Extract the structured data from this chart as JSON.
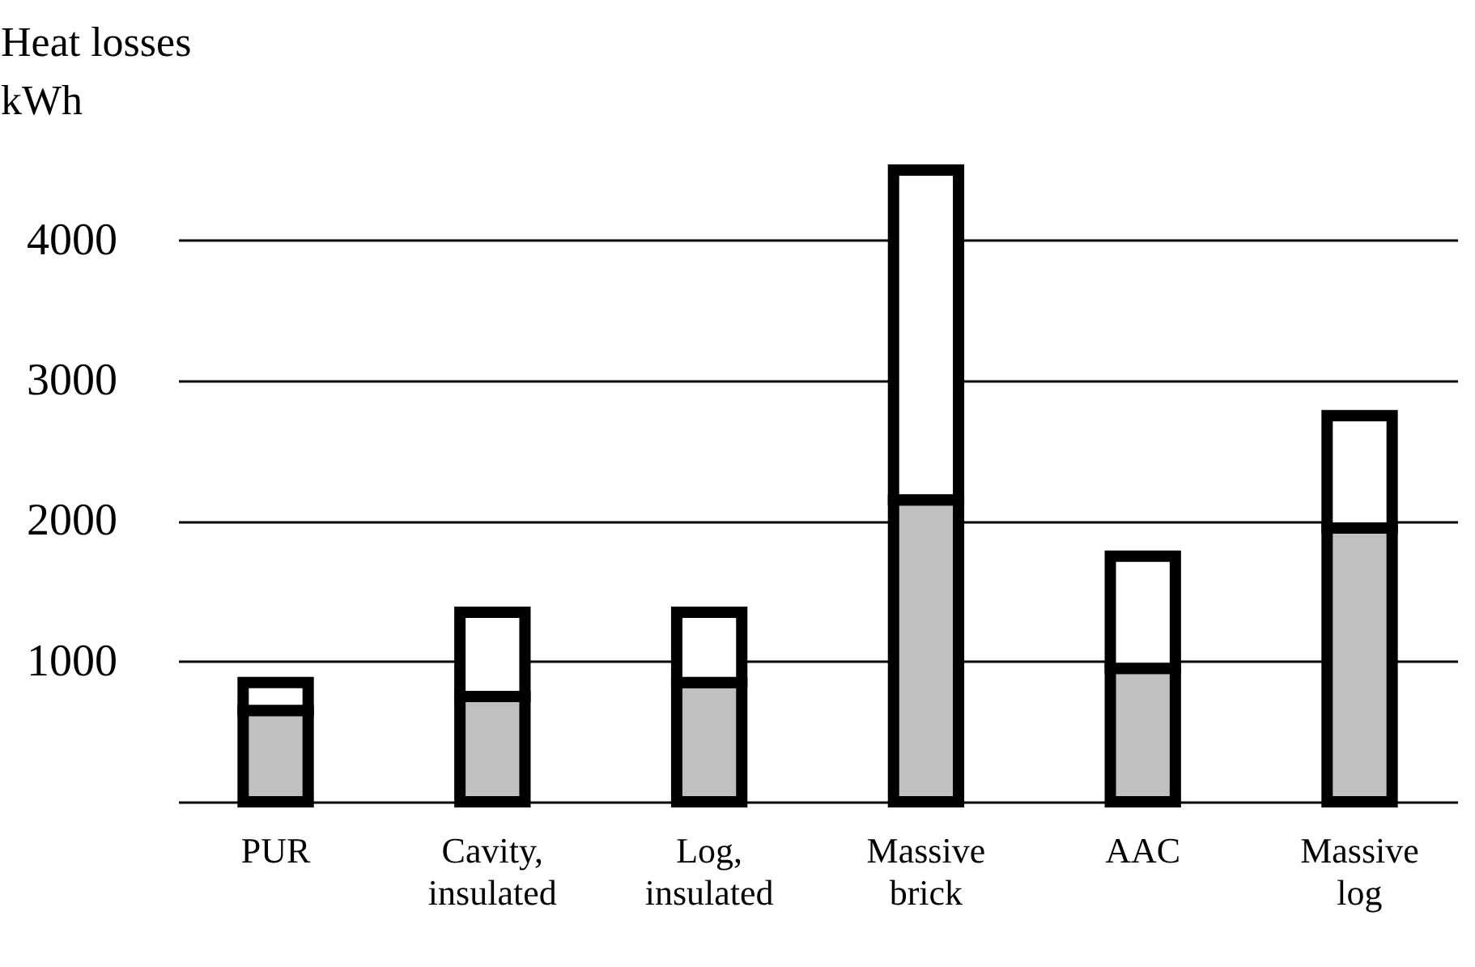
{
  "chart_data": {
    "type": "bar",
    "ylabel": "Heat losses\nkWh",
    "stacked": true,
    "categories": [
      "PUR",
      "Cavity, insulated",
      "Log, insulated",
      "Massive brick",
      "AAC",
      "Massive log"
    ],
    "series": [
      {
        "color": "#c0c0c0",
        "values": [
          650,
          750,
          850,
          2150,
          950,
          1950
        ]
      },
      {
        "color": "#ffffff",
        "values": [
          200,
          600,
          500,
          2350,
          800,
          800
        ]
      }
    ],
    "ylim": [
      0,
      4500
    ],
    "yticks": [
      {
        "value": 0,
        "label": null
      },
      1000,
      2000,
      3000,
      4000
    ],
    "grid": "y",
    "legend": false
  }
}
